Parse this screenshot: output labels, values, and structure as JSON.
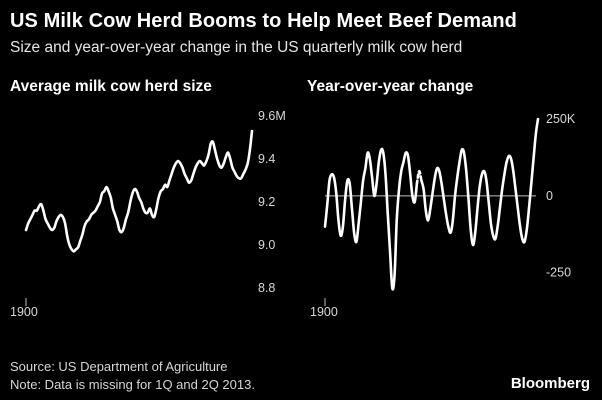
{
  "title": "US Milk Cow Herd Booms to Help Meet Beef Demand",
  "subtitle": "Size and year-over-year change in the US quarterly milk cow herd",
  "source": "Source: US Department of Agriculture",
  "note": "Note: Data is missing for 1Q and 2Q 2013.",
  "brand": "Bloomberg",
  "colors": {
    "background": "#000000",
    "line": "#ffffff",
    "text": "#ffffff"
  },
  "chart_data": [
    {
      "type": "line",
      "title": "Average milk cow herd size",
      "xlabel": "",
      "ylabel": "",
      "x_tick_labels": [
        "1900"
      ],
      "y_ticks": [
        {
          "value": 8.8,
          "label": "8.8"
        },
        {
          "value": 9.0,
          "label": "9.0"
        },
        {
          "value": 9.2,
          "label": "9.2"
        },
        {
          "value": 9.4,
          "label": "9.4"
        },
        {
          "value": 9.6,
          "label": "9.6M"
        }
      ],
      "ylim": [
        8.8,
        9.6
      ],
      "grid": false,
      "series": [
        {
          "values": [
            9.07,
            9.1,
            9.12,
            9.14,
            9.16,
            9.16,
            9.18,
            9.19,
            9.16,
            9.12,
            9.1,
            9.08,
            9.07,
            9.08,
            9.11,
            9.13,
            9.14,
            9.13,
            9.1,
            9.04,
            9.0,
            8.98,
            8.97,
            8.98,
            8.99,
            9.02,
            9.05,
            9.09,
            9.11,
            9.12,
            9.14,
            9.15,
            9.16,
            9.18,
            9.2,
            9.24,
            9.25,
            9.27,
            9.25,
            9.22,
            9.17,
            9.14,
            9.11,
            9.07,
            9.06,
            9.08,
            9.12,
            9.15,
            9.2,
            9.24,
            9.26,
            9.25,
            9.22,
            9.2,
            9.17,
            9.15,
            9.15,
            9.17,
            9.14,
            9.13,
            9.17,
            9.22,
            9.25,
            9.26,
            9.28,
            9.27,
            9.3,
            9.33,
            9.36,
            9.38,
            9.39,
            9.38,
            9.36,
            9.33,
            9.31,
            9.29,
            9.3,
            9.33,
            9.36,
            9.38,
            9.39,
            9.38,
            9.37,
            9.39,
            9.42,
            9.47,
            9.48,
            9.44,
            9.4,
            9.37,
            9.36,
            9.38,
            9.41,
            9.43,
            9.4,
            9.36,
            9.34,
            9.32,
            9.31,
            9.31,
            9.33,
            9.35,
            9.38,
            9.44,
            9.53
          ]
        }
      ]
    },
    {
      "type": "line",
      "title": "Year-over-year change",
      "xlabel": "",
      "ylabel": "",
      "x_tick_labels": [
        "1900"
      ],
      "y_ticks": [
        {
          "value": -250,
          "label": "-250"
        },
        {
          "value": 0,
          "label": "0"
        },
        {
          "value": 250,
          "label": "250K"
        }
      ],
      "ylim": [
        -300,
        260
      ],
      "zero_line": true,
      "grid": false,
      "series": [
        {
          "values": [
            -100,
            -30,
            50,
            70,
            60,
            10,
            -80,
            -130,
            -100,
            -10,
            50,
            40,
            -40,
            -120,
            -150,
            -90,
            -20,
            50,
            90,
            140,
            120,
            60,
            0,
            40,
            110,
            150,
            140,
            70,
            -60,
            -180,
            -300,
            -260,
            -80,
            20,
            80,
            110,
            140,
            130,
            70,
            0,
            -20,
            40,
            80,
            50,
            20,
            -50,
            -80,
            -40,
            10,
            60,
            90,
            80,
            40,
            -10,
            -60,
            -100,
            -120,
            -80,
            0,
            60,
            110,
            150,
            140,
            80,
            -10,
            -110,
            -160,
            -120,
            -40,
            30,
            70,
            80,
            50,
            -20,
            -90,
            -130,
            -140,
            -100,
            -40,
            20,
            70,
            110,
            130,
            120,
            80,
            20,
            -40,
            -100,
            -140,
            -150,
            -110,
            -40,
            40,
            120,
            200,
            250
          ]
        }
      ],
      "gap_after_index": 41
    }
  ]
}
